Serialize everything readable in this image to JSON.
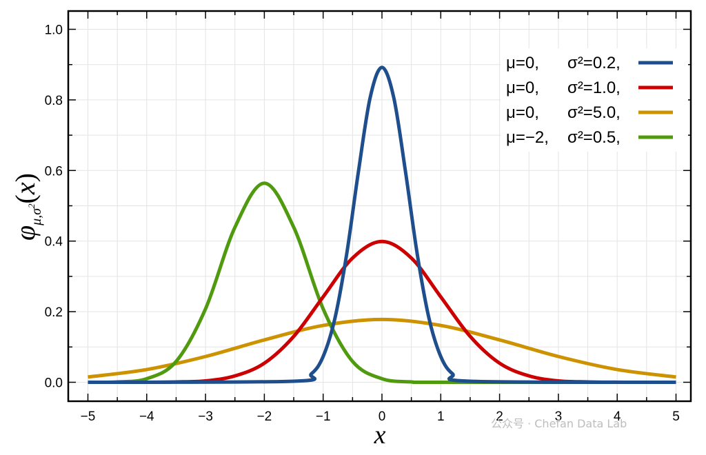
{
  "chart_data": {
    "type": "line",
    "title": "",
    "xlabel": "x",
    "ylabel": "φμ,σ²(x)",
    "xlim": [
      -5,
      5
    ],
    "ylim": [
      0.0,
      1.0
    ],
    "grid": true,
    "legend_position": "top-right",
    "x_ticks": [
      "−5",
      "−4",
      "−3",
      "−2",
      "−1",
      "0",
      "1",
      "2",
      "3",
      "4",
      "5"
    ],
    "y_ticks": [
      "0.0",
      "0.2",
      "0.4",
      "0.6",
      "0.8",
      "1.0"
    ],
    "series": [
      {
        "name": "μ=0, σ²=0.2,",
        "mu_label": "μ=0,",
        "sigma_label": "σ²=0.2,",
        "color": "#1f4e8c",
        "x": [
          -5,
          -1.5,
          -1.2,
          -1.0,
          -0.8,
          -0.6,
          -0.4,
          -0.2,
          0,
          0.2,
          0.4,
          0.6,
          0.8,
          1.0,
          1.2,
          1.5,
          5
        ],
        "values": [
          0,
          0.003,
          0.024,
          0.073,
          0.181,
          0.363,
          0.597,
          0.807,
          0.892,
          0.807,
          0.597,
          0.363,
          0.181,
          0.073,
          0.024,
          0.003,
          0
        ]
      },
      {
        "name": "μ=0, σ²=1.0,",
        "mu_label": "μ=0,",
        "sigma_label": "σ²=1.0,",
        "color": "#cc0000",
        "x": [
          -5,
          -4,
          -3.5,
          -3,
          -2.5,
          -2,
          -1.5,
          -1,
          -0.5,
          0,
          0.5,
          1,
          1.5,
          2,
          2.5,
          3,
          3.5,
          4,
          5
        ],
        "values": [
          0,
          0.0001,
          0.001,
          0.004,
          0.018,
          0.054,
          0.13,
          0.242,
          0.352,
          0.399,
          0.352,
          0.242,
          0.13,
          0.054,
          0.018,
          0.004,
          0.001,
          0.0001,
          0
        ]
      },
      {
        "name": "μ=0, σ²=5.0,",
        "mu_label": "μ=0,",
        "sigma_label": "σ²=5.0,",
        "color": "#cc9200",
        "x": [
          -5,
          -4,
          -3,
          -2,
          -1,
          0,
          1,
          2,
          3,
          4,
          5
        ],
        "values": [
          0.015,
          0.036,
          0.073,
          0.12,
          0.161,
          0.178,
          0.161,
          0.12,
          0.073,
          0.036,
          0.015
        ]
      },
      {
        "name": "μ=−2, σ²=0.5,",
        "mu_label": "μ=−2,",
        "sigma_label": "σ²=0.5,",
        "color": "#4f9a0e",
        "x": [
          -5,
          -4.5,
          -4,
          -3.5,
          -3,
          -2.5,
          -2,
          -1.5,
          -1,
          -0.5,
          0,
          0.5,
          1,
          5
        ],
        "values": [
          0,
          0.001,
          0.01,
          0.059,
          0.208,
          0.439,
          0.564,
          0.439,
          0.208,
          0.059,
          0.01,
          0.001,
          0,
          0
        ]
      }
    ]
  },
  "watermark": "公众号 · Chefan Data Lab"
}
